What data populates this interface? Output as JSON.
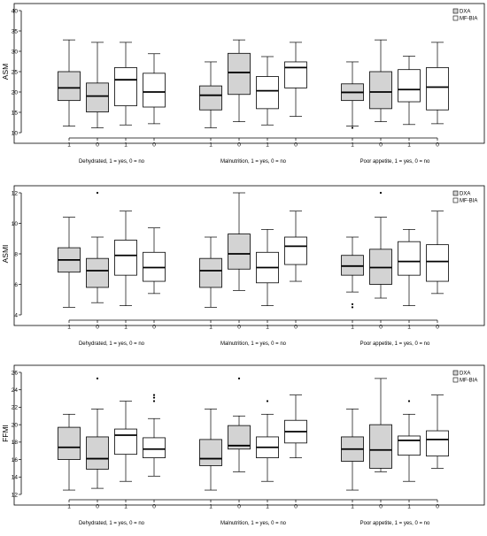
{
  "colors": {
    "DXA": "#d3d3d3",
    "MF-BIA": "#ffffff"
  },
  "chart_data": [
    {
      "type": "box",
      "ylabel": "ASM",
      "ylim": [
        10,
        40
      ],
      "yticks": [
        10,
        15,
        20,
        25,
        30,
        35,
        40
      ],
      "legend": {
        "position": "top-right",
        "entries": [
          "DXA",
          "MF-BIA"
        ]
      },
      "groups": [
        {
          "label": "Dehydrated, 1 = yes, 0 = no",
          "boxes": [
            {
              "x_label": "1",
              "method": "DXA",
              "min": 11.6,
              "q1": 17.9,
              "median": 21.0,
              "q3": 25.0,
              "max": 32.8,
              "outliers": []
            },
            {
              "x_label": "0",
              "method": "DXA",
              "min": 11.2,
              "q1": 15.1,
              "median": 19.0,
              "q3": 22.2,
              "max": 32.2,
              "outliers": []
            },
            {
              "x_label": "1",
              "method": "MF-BIA",
              "min": 11.9,
              "q1": 16.6,
              "median": 23.0,
              "q3": 26.0,
              "max": 32.2,
              "outliers": []
            },
            {
              "x_label": "0",
              "method": "MF-BIA",
              "min": 12.2,
              "q1": 16.3,
              "median": 20.0,
              "q3": 24.6,
              "max": 29.4,
              "outliers": []
            }
          ]
        },
        {
          "label": "Malnutrition, 1 = yes, 0 = no",
          "boxes": [
            {
              "x_label": "1",
              "method": "DXA",
              "min": 11.2,
              "q1": 15.6,
              "median": 19.2,
              "q3": 21.5,
              "max": 27.4,
              "outliers": []
            },
            {
              "x_label": "0",
              "method": "DXA",
              "min": 12.7,
              "q1": 19.4,
              "median": 24.8,
              "q3": 29.5,
              "max": 32.8,
              "outliers": []
            },
            {
              "x_label": "1",
              "method": "MF-BIA",
              "min": 11.9,
              "q1": 15.9,
              "median": 20.3,
              "q3": 23.8,
              "max": 28.7,
              "outliers": []
            },
            {
              "x_label": "0",
              "method": "MF-BIA",
              "min": 14.0,
              "q1": 21.0,
              "median": 26.0,
              "q3": 27.4,
              "max": 32.2,
              "outliers": []
            }
          ]
        },
        {
          "label": "Poor appetite, 1 = yes, 0 = no",
          "boxes": [
            {
              "x_label": "1",
              "method": "DXA",
              "min": 11.6,
              "q1": 17.9,
              "median": 19.9,
              "q3": 22.0,
              "max": 27.4,
              "outliers": [
                11.2
              ]
            },
            {
              "x_label": "0",
              "method": "DXA",
              "min": 12.7,
              "q1": 15.9,
              "median": 20.0,
              "q3": 25.0,
              "max": 32.8,
              "outliers": []
            },
            {
              "x_label": "1",
              "method": "MF-BIA",
              "min": 12.0,
              "q1": 17.6,
              "median": 20.6,
              "q3": 25.5,
              "max": 28.8,
              "outliers": []
            },
            {
              "x_label": "0",
              "method": "MF-BIA",
              "min": 12.2,
              "q1": 15.6,
              "median": 21.2,
              "q3": 26.0,
              "max": 32.2,
              "outliers": []
            }
          ]
        }
      ]
    },
    {
      "type": "box",
      "ylabel": "ASMI",
      "ylim": [
        4,
        12
      ],
      "yticks": [
        4,
        6,
        8,
        10,
        12
      ],
      "legend": {
        "position": "top-right",
        "entries": [
          "DXA",
          "MF-BIA"
        ]
      },
      "groups": [
        {
          "label": "Dehydrated, 1 = yes, 0 = no",
          "boxes": [
            {
              "x_label": "1",
              "method": "DXA",
              "min": 4.5,
              "q1": 6.8,
              "median": 7.6,
              "q3": 8.4,
              "max": 10.4,
              "outliers": []
            },
            {
              "x_label": "0",
              "method": "DXA",
              "min": 4.8,
              "q1": 5.8,
              "median": 6.9,
              "q3": 7.7,
              "max": 9.1,
              "outliers": [
                12.0
              ]
            },
            {
              "x_label": "1",
              "method": "MF-BIA",
              "min": 4.6,
              "q1": 6.6,
              "median": 7.9,
              "q3": 8.9,
              "max": 10.8,
              "outliers": []
            },
            {
              "x_label": "0",
              "method": "MF-BIA",
              "min": 5.4,
              "q1": 6.2,
              "median": 7.1,
              "q3": 8.1,
              "max": 9.7,
              "outliers": []
            }
          ]
        },
        {
          "label": "Malnutrition, 1 = yes, 0 = no",
          "boxes": [
            {
              "x_label": "1",
              "method": "DXA",
              "min": 4.5,
              "q1": 5.8,
              "median": 6.9,
              "q3": 7.7,
              "max": 9.1,
              "outliers": []
            },
            {
              "x_label": "0",
              "method": "DXA",
              "min": 5.6,
              "q1": 7.0,
              "median": 8.0,
              "q3": 9.3,
              "max": 12.0,
              "outliers": []
            },
            {
              "x_label": "1",
              "method": "MF-BIA",
              "min": 4.6,
              "q1": 6.1,
              "median": 7.1,
              "q3": 8.1,
              "max": 9.6,
              "outliers": []
            },
            {
              "x_label": "0",
              "method": "MF-BIA",
              "min": 6.2,
              "q1": 7.3,
              "median": 8.5,
              "q3": 9.1,
              "max": 10.8,
              "outliers": []
            }
          ]
        },
        {
          "label": "Poor appetite, 1 = yes, 0 = no",
          "boxes": [
            {
              "x_label": "1",
              "method": "DXA",
              "min": 5.5,
              "q1": 6.6,
              "median": 7.2,
              "q3": 7.9,
              "max": 9.1,
              "outliers": [
                4.7,
                4.5
              ]
            },
            {
              "x_label": "0",
              "method": "DXA",
              "min": 5.1,
              "q1": 6.0,
              "median": 7.1,
              "q3": 8.3,
              "max": 10.4,
              "outliers": [
                12.0
              ]
            },
            {
              "x_label": "1",
              "method": "MF-BIA",
              "min": 4.6,
              "q1": 6.6,
              "median": 7.5,
              "q3": 8.8,
              "max": 9.6,
              "outliers": []
            },
            {
              "x_label": "0",
              "method": "MF-BIA",
              "min": 5.4,
              "q1": 6.2,
              "median": 7.5,
              "q3": 8.6,
              "max": 10.8,
              "outliers": []
            }
          ]
        }
      ]
    },
    {
      "type": "box",
      "ylabel": "FFMI",
      "ylim": [
        12,
        26
      ],
      "yticks": [
        12,
        14,
        16,
        18,
        20,
        22,
        24,
        26
      ],
      "legend": {
        "position": "top-right",
        "entries": [
          "DXA",
          "MF-BIA"
        ]
      },
      "groups": [
        {
          "label": "Dehydrated, 1 = yes, 0 = no",
          "boxes": [
            {
              "x_label": "1",
              "method": "DXA",
              "min": 12.5,
              "q1": 16.0,
              "median": 17.4,
              "q3": 19.7,
              "max": 21.2,
              "outliers": []
            },
            {
              "x_label": "0",
              "method": "DXA",
              "min": 12.7,
              "q1": 14.9,
              "median": 16.1,
              "q3": 18.6,
              "max": 21.8,
              "outliers": [
                25.3
              ]
            },
            {
              "x_label": "1",
              "method": "MF-BIA",
              "min": 13.5,
              "q1": 16.6,
              "median": 18.8,
              "q3": 19.5,
              "max": 22.7,
              "outliers": []
            },
            {
              "x_label": "0",
              "method": "MF-BIA",
              "min": 14.1,
              "q1": 16.2,
              "median": 17.2,
              "q3": 18.5,
              "max": 20.7,
              "outliers": [
                22.7,
                23.1,
                23.4
              ]
            }
          ]
        },
        {
          "label": "Malnutrition, 1 = yes, 0 = no",
          "boxes": [
            {
              "x_label": "1",
              "method": "DXA",
              "min": 12.5,
              "q1": 15.3,
              "median": 16.1,
              "q3": 18.3,
              "max": 21.8,
              "outliers": []
            },
            {
              "x_label": "0",
              "method": "DXA",
              "min": 14.6,
              "q1": 17.2,
              "median": 17.6,
              "q3": 19.9,
              "max": 21.0,
              "outliers": [
                25.3
              ]
            },
            {
              "x_label": "1",
              "method": "MF-BIA",
              "min": 13.5,
              "q1": 16.2,
              "median": 17.4,
              "q3": 18.6,
              "max": 21.2,
              "outliers": [
                22.7
              ]
            },
            {
              "x_label": "0",
              "method": "MF-BIA",
              "min": 16.2,
              "q1": 17.9,
              "median": 19.2,
              "q3": 20.5,
              "max": 23.4,
              "outliers": []
            }
          ]
        },
        {
          "label": "Poor appetite, 1 = yes, 0 = no",
          "boxes": [
            {
              "x_label": "1",
              "method": "DXA",
              "min": 12.5,
              "q1": 15.8,
              "median": 17.2,
              "q3": 18.6,
              "max": 21.8,
              "outliers": []
            },
            {
              "x_label": "0",
              "method": "DXA",
              "min": 14.6,
              "q1": 15.0,
              "median": 17.1,
              "q3": 20.0,
              "max": 25.3,
              "outliers": []
            },
            {
              "x_label": "1",
              "method": "MF-BIA",
              "min": 13.5,
              "q1": 16.5,
              "median": 18.2,
              "q3": 18.7,
              "max": 21.2,
              "outliers": [
                22.7
              ]
            },
            {
              "x_label": "0",
              "method": "MF-BIA",
              "min": 15.0,
              "q1": 16.4,
              "median": 18.3,
              "q3": 19.3,
              "max": 23.4,
              "outliers": []
            }
          ]
        }
      ]
    }
  ]
}
